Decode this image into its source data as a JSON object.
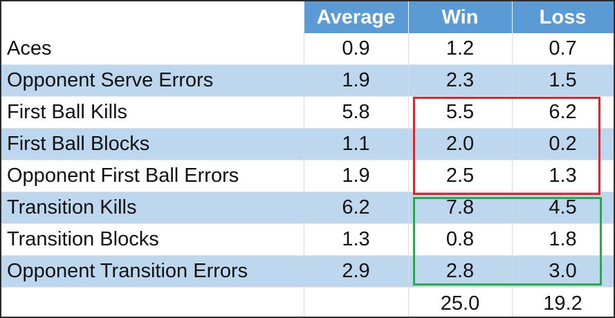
{
  "chart_data": {
    "type": "table",
    "columns": [
      "",
      "Average",
      "Win",
      "Loss"
    ],
    "rows": [
      {
        "label": "Aces",
        "average": "0.9",
        "win": "1.2",
        "loss": "0.7"
      },
      {
        "label": "Opponent Serve Errors",
        "average": "1.9",
        "win": "2.3",
        "loss": "1.5"
      },
      {
        "label": "First Ball Kills",
        "average": "5.8",
        "win": "5.5",
        "loss": "6.2"
      },
      {
        "label": "First Ball Blocks",
        "average": "1.1",
        "win": "2.0",
        "loss": "0.2"
      },
      {
        "label": "Opponent First Ball Errors",
        "average": "1.9",
        "win": "2.5",
        "loss": "1.3"
      },
      {
        "label": "Transition Kills",
        "average": "6.2",
        "win": "7.8",
        "loss": "4.5"
      },
      {
        "label": "Transition Blocks",
        "average": "1.3",
        "win": "0.8",
        "loss": "1.8"
      },
      {
        "label": "Opponent Transition Errors",
        "average": "2.9",
        "win": "2.8",
        "loss": "3.0"
      }
    ],
    "totals": {
      "label": "",
      "average": "",
      "win": "25.0",
      "loss": "19.2"
    },
    "highlights": [
      {
        "color": "#e0242b",
        "rows": [
          "First Ball Kills",
          "First Ball Blocks",
          "Opponent First Ball Errors"
        ],
        "columns": [
          "Win",
          "Loss"
        ]
      },
      {
        "color": "#2aa84a",
        "rows": [
          "Transition Kills",
          "Transition Blocks",
          "Opponent Transition Errors"
        ],
        "columns": [
          "Win",
          "Loss"
        ]
      }
    ],
    "colors": {
      "header": "#5b9bd5",
      "band": "#bdd7ee",
      "header_text": "#ffffff"
    }
  }
}
